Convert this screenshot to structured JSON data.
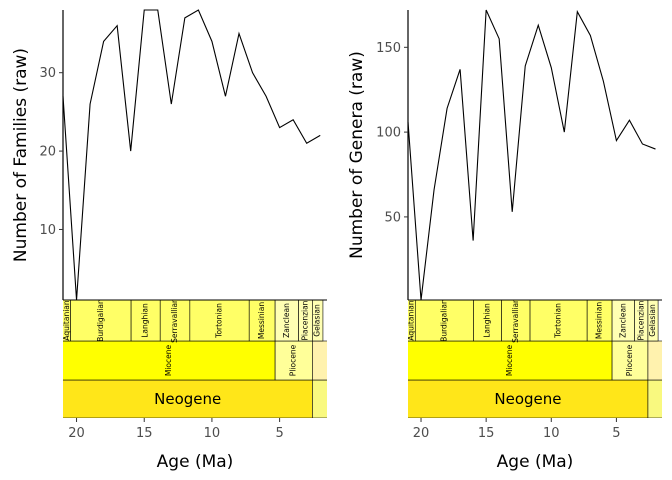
{
  "chart_data": [
    {
      "type": "line",
      "ylabel": "Number of Families (raw)",
      "xlabel": "Age (Ma)",
      "x_reversed": true,
      "xlim": [
        21.0,
        1.5
      ],
      "ylim": [
        1.0,
        38.0
      ],
      "x_ticks": [
        20,
        15,
        10,
        5
      ],
      "y_ticks": [
        10,
        20,
        30
      ],
      "x": [
        21.0,
        20.0,
        19.0,
        18.0,
        17.0,
        16.0,
        15.0,
        14.0,
        13.0,
        12.0,
        11.0,
        10.0,
        9.0,
        8.0,
        7.0,
        6.0,
        5.0,
        4.0,
        3.0,
        2.0
      ],
      "values": [
        27,
        1,
        26,
        34,
        36,
        20,
        38,
        38,
        26,
        37,
        38,
        34,
        27,
        35,
        30,
        27,
        23,
        24,
        21,
        22
      ],
      "timescale": {
        "period": [
          {
            "name": "Neogene",
            "start": 23.03,
            "end": 2.58
          }
        ],
        "epoch": [
          {
            "name": "Miocene",
            "start": 23.03,
            "end": 5.333
          },
          {
            "name": "Pliocene",
            "start": 5.333,
            "end": 2.58
          }
        ],
        "stage": [
          {
            "name": "Aquitanian",
            "start": 23.03,
            "end": 20.44
          },
          {
            "name": "Burdigalian",
            "start": 20.44,
            "end": 15.97
          },
          {
            "name": "Langhian",
            "start": 15.97,
            "end": 13.82
          },
          {
            "name": "Serravallian",
            "start": 13.82,
            "end": 11.63
          },
          {
            "name": "Tortonian",
            "start": 11.63,
            "end": 7.246
          },
          {
            "name": "Messinian",
            "start": 7.246,
            "end": 5.333
          },
          {
            "name": "Zanclean",
            "start": 5.333,
            "end": 3.6
          },
          {
            "name": "Piacenzian",
            "start": 3.6,
            "end": 2.58
          },
          {
            "name": "Gelasian",
            "start": 2.58,
            "end": 1.8
          }
        ]
      }
    },
    {
      "type": "line",
      "ylabel": "Number of Genera (raw)",
      "xlabel": "Age (Ma)",
      "x_reversed": true,
      "xlim": [
        21.0,
        1.5
      ],
      "ylim": [
        1.0,
        172.0
      ],
      "x_ticks": [
        20,
        15,
        10,
        5
      ],
      "y_ticks": [
        50,
        100,
        150
      ],
      "x": [
        21.0,
        20.0,
        19.0,
        18.0,
        17.0,
        16.0,
        15.0,
        14.0,
        13.0,
        12.0,
        11.0,
        10.0,
        9.0,
        8.0,
        7.0,
        6.0,
        5.0,
        4.0,
        3.0,
        2.0
      ],
      "values": [
        106,
        1,
        66,
        114,
        137,
        36,
        172,
        155,
        53,
        139,
        163,
        138,
        100,
        171,
        157,
        130,
        95,
        107,
        93,
        90
      ],
      "timescale": {
        "period": [
          {
            "name": "Neogene",
            "start": 23.03,
            "end": 2.58
          }
        ],
        "epoch": [
          {
            "name": "Miocene",
            "start": 23.03,
            "end": 5.333
          },
          {
            "name": "Pliocene",
            "start": 5.333,
            "end": 2.58
          }
        ],
        "stage": [
          {
            "name": "Aquitanian",
            "start": 23.03,
            "end": 20.44
          },
          {
            "name": "Burdigalian",
            "start": 20.44,
            "end": 15.97
          },
          {
            "name": "Langhian",
            "start": 15.97,
            "end": 13.82
          },
          {
            "name": "Serravallian",
            "start": 13.82,
            "end": 11.63
          },
          {
            "name": "Tortonian",
            "start": 11.63,
            "end": 7.246
          },
          {
            "name": "Messinian",
            "start": 7.246,
            "end": 5.333
          },
          {
            "name": "Zanclean",
            "start": 5.333,
            "end": 3.6
          },
          {
            "name": "Piacenzian",
            "start": 3.6,
            "end": 2.58
          },
          {
            "name": "Gelasian",
            "start": 2.58,
            "end": 1.8
          }
        ]
      }
    }
  ],
  "colors": {
    "period": "#FFE619",
    "miocene": "#FFFF00",
    "pliocene": "#FFFF99",
    "stage_light": "#FFFF66",
    "stage_pale": "#FFFFB3",
    "line": "#000000"
  }
}
